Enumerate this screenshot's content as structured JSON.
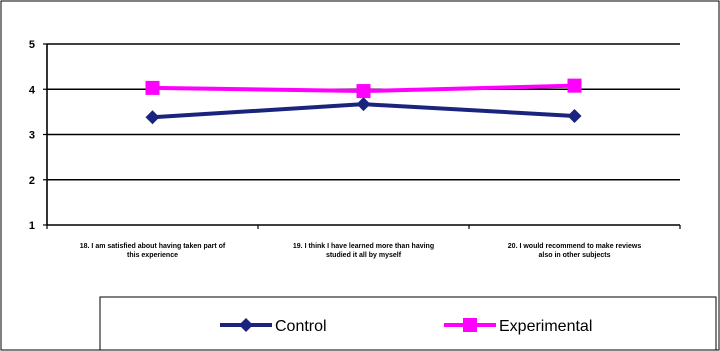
{
  "chart_data": {
    "type": "line",
    "categories": [
      [
        "18. I am satisfied about having taken part of",
        "this experience"
      ],
      [
        "19. I think I have learned more than having",
        "studied it all by myself"
      ],
      [
        "20. I would recommend to make reviews",
        "also in other subjects"
      ]
    ],
    "series": [
      {
        "name": "Control",
        "values": [
          3.38,
          3.67,
          3.41
        ],
        "color": "#1a237e",
        "marker": "diamond"
      },
      {
        "name": "Experimental",
        "values": [
          4.03,
          3.96,
          4.08
        ],
        "color": "#ff00ff",
        "marker": "square"
      }
    ],
    "ylim": [
      1,
      5
    ],
    "yticks": [
      1,
      2,
      3,
      4,
      5
    ],
    "grid": "horizontal",
    "legend": "bottom"
  }
}
